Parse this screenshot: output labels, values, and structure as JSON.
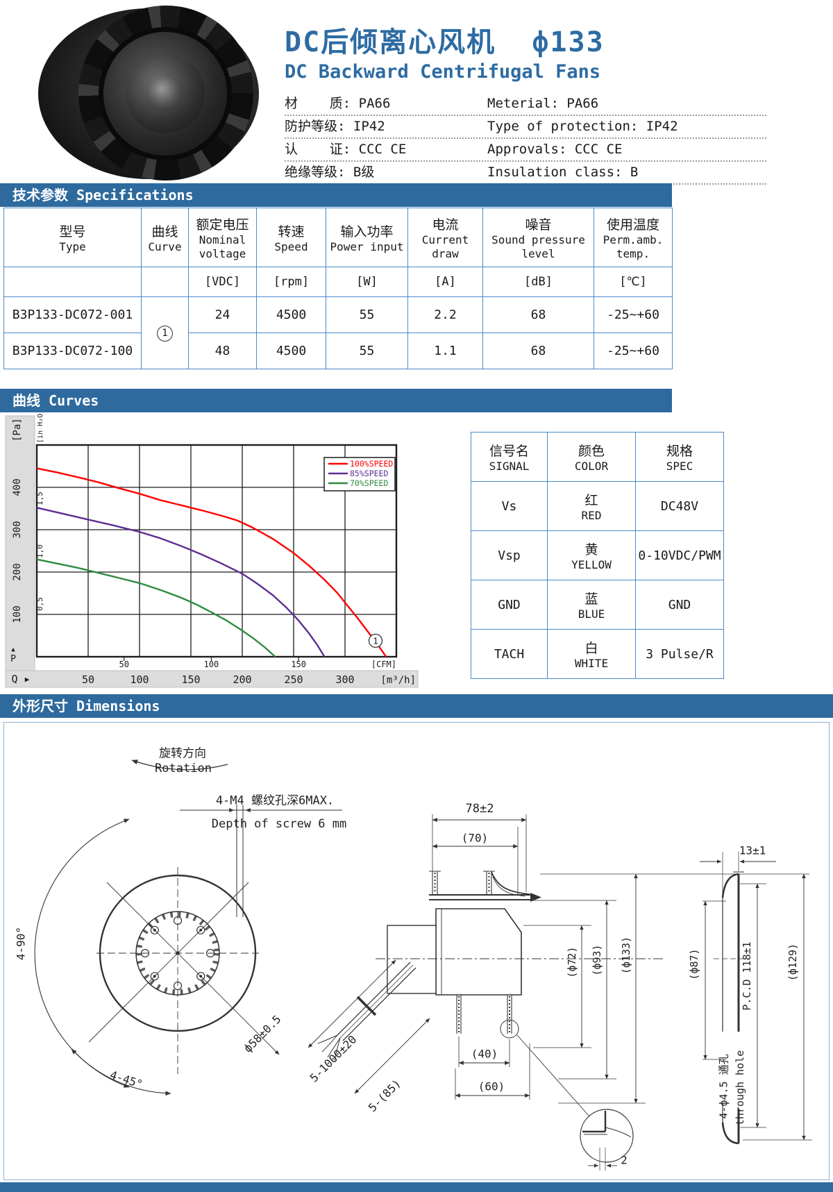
{
  "header": {
    "title_cn": "DC后倾离心风机  ф133",
    "title_en": "DC Backward Centrifugal Fans",
    "specs": [
      {
        "cn": "材    质: PA66",
        "en": "Meterial: PA66"
      },
      {
        "cn": "防护等级: IP42",
        "en": "Type of protection: IP42"
      },
      {
        "cn": "认    证: CCC CE",
        "en": "Approvals: CCC CE"
      },
      {
        "cn": "绝缘等级: B级",
        "en": "Insulation class: B"
      }
    ]
  },
  "sections": {
    "specifications": "技术参数 Specifications",
    "curves": "曲线 Curves",
    "dimensions": "外形尺寸 Dimensions"
  },
  "spec_table": {
    "headers": [
      {
        "cn": "型号",
        "en": "Type"
      },
      {
        "cn": "曲线",
        "en": "Curve"
      },
      {
        "cn": "额定电压",
        "en": "Nominal voltage"
      },
      {
        "cn": "转速",
        "en": "Speed"
      },
      {
        "cn": "输入功率",
        "en": "Power input"
      },
      {
        "cn": "电流",
        "en": "Current draw"
      },
      {
        "cn": "噪音",
        "en": "Sound pressure level"
      },
      {
        "cn": "使用温度",
        "en": "Perm.amb. temp."
      }
    ],
    "units": [
      "",
      "",
      "[VDC]",
      "[rpm]",
      "[W]",
      "[A]",
      "[dB]",
      "[℃]"
    ],
    "rows": [
      [
        "B3P133-DC072-001",
        "①",
        "24",
        "4500",
        "55",
        "2.2",
        "68",
        "-25~+60"
      ],
      [
        "B3P133-DC072-100",
        "",
        "48",
        "4500",
        "55",
        "1.1",
        "68",
        "-25~+60"
      ]
    ]
  },
  "chart_data": {
    "type": "line",
    "x_axis": {
      "name": "Q",
      "arrow": "▶",
      "unit_top": "[CFM]",
      "unit_bottom": "[m³/h]",
      "range_m3h": [
        0,
        350
      ],
      "ticks_m3h": [
        50,
        100,
        150,
        200,
        250,
        300
      ],
      "ticks_cfm": [
        50,
        100,
        150
      ],
      "m3h_per_cfm": 1.699
    },
    "y_axis": {
      "name": "P",
      "arrow": "▲",
      "unit_left": "[Pa]",
      "unit_inner": "[in H₂O]",
      "range_pa": [
        0,
        500
      ],
      "ticks_pa": [
        100,
        200,
        300,
        400
      ],
      "ticks_inh2o": [
        {
          "label": "0,5",
          "pa": 124.5
        },
        {
          "label": "1,0",
          "pa": 249
        },
        {
          "label": "1,5",
          "pa": 373.5
        }
      ]
    },
    "grid": {
      "x_step_m3h": 50,
      "y_step_pa": 100
    },
    "legend_position": "top-right",
    "curve_marker": "①",
    "series": [
      {
        "name": "100%SPEED",
        "color": "#ff0000",
        "points": [
          [
            0,
            445
          ],
          [
            20,
            435
          ],
          [
            40,
            424
          ],
          [
            60,
            412
          ],
          [
            80,
            398
          ],
          [
            100,
            385
          ],
          [
            120,
            370
          ],
          [
            140,
            358
          ],
          [
            160,
            346
          ],
          [
            180,
            333
          ],
          [
            195,
            322
          ],
          [
            210,
            305
          ],
          [
            230,
            278
          ],
          [
            250,
            245
          ],
          [
            265,
            215
          ],
          [
            280,
            182
          ],
          [
            292,
            152
          ],
          [
            302,
            122
          ],
          [
            312,
            92
          ],
          [
            322,
            60
          ],
          [
            332,
            28
          ],
          [
            340,
            0
          ]
        ]
      },
      {
        "name": "85%SPEED",
        "color": "#5c2d91",
        "points": [
          [
            0,
            352
          ],
          [
            25,
            338
          ],
          [
            50,
            324
          ],
          [
            75,
            310
          ],
          [
            100,
            295
          ],
          [
            120,
            280
          ],
          [
            140,
            262
          ],
          [
            160,
            242
          ],
          [
            180,
            220
          ],
          [
            200,
            196
          ],
          [
            215,
            172
          ],
          [
            230,
            145
          ],
          [
            243,
            116
          ],
          [
            255,
            85
          ],
          [
            265,
            55
          ],
          [
            273,
            28
          ],
          [
            280,
            0
          ]
        ]
      },
      {
        "name": "70%SPEED",
        "color": "#2e8b3d",
        "points": [
          [
            0,
            230
          ],
          [
            20,
            220
          ],
          [
            40,
            210
          ],
          [
            60,
            198
          ],
          [
            80,
            186
          ],
          [
            100,
            174
          ],
          [
            120,
            158
          ],
          [
            140,
            140
          ],
          [
            155,
            124
          ],
          [
            170,
            105
          ],
          [
            185,
            85
          ],
          [
            198,
            65
          ],
          [
            210,
            45
          ],
          [
            222,
            22
          ],
          [
            232,
            0
          ]
        ]
      }
    ]
  },
  "signal_table": {
    "headers": [
      {
        "cn": "信号名",
        "en": "SIGNAL"
      },
      {
        "cn": "颜色",
        "en": "COLOR"
      },
      {
        "cn": "规格",
        "en": "SPEC"
      }
    ],
    "rows": [
      {
        "signal": "Vs",
        "color_cn": "红",
        "color_en": "RED",
        "spec": "DC48V"
      },
      {
        "signal": "Vsp",
        "color_cn": "黄",
        "color_en": "YELLOW",
        "spec": "0-10VDC/PWM"
      },
      {
        "signal": "GND",
        "color_cn": "蓝",
        "color_en": "BLUE",
        "spec": "GND"
      },
      {
        "signal": "TACH",
        "color_cn": "白",
        "color_en": "WHITE",
        "spec": "3 Pulse/R"
      }
    ]
  },
  "dim_labels": {
    "rotation_cn": "旋转方向",
    "rotation_en": "Rotation",
    "screw_cn": "4-M4 螺纹孔深6MAX.",
    "screw_en": "Depth of screw 6 mm",
    "width_78": "78±2",
    "width_70": "(70)",
    "dia_72": "(ф72)",
    "dia_93": "(ф93)",
    "dia_133": "(ф133)",
    "flange_13": "13±1",
    "dia_87": "(ф87)",
    "pcd": "P.C.D 118±1",
    "dia_129": "(ф129)",
    "hub_58": "ф58±0.5",
    "angle_90": "4-90°",
    "angle_45": "4-45°",
    "wire_1000": "5-1000±20",
    "wire_85": "5-(85)",
    "dim_40": "(40)",
    "dim_60": "(60)",
    "hole_cn": "4-ф4.5 通孔",
    "hole_en": "through hole",
    "detail_2": "2"
  }
}
